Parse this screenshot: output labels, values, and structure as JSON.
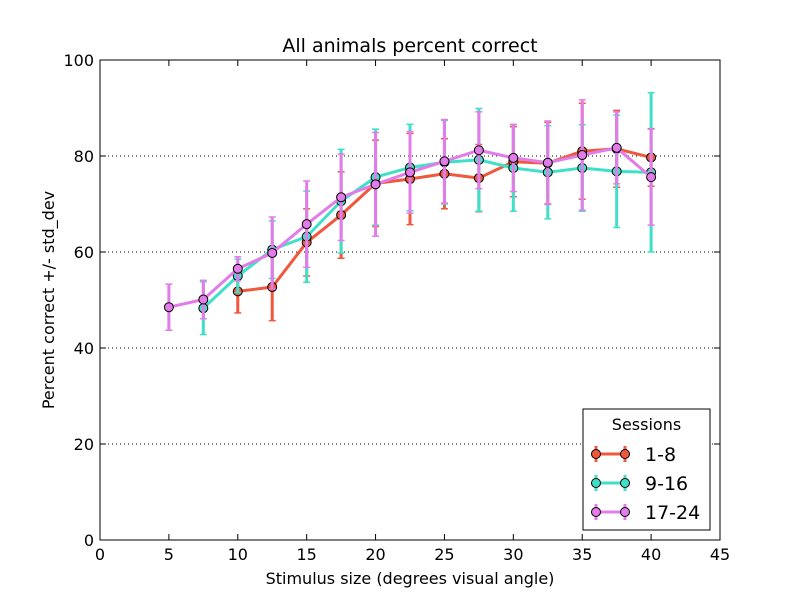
{
  "chart_data": {
    "type": "line",
    "title": "All animals percent correct",
    "xlabel": "Stimulus size (degrees visual angle)",
    "ylabel": "Percent correct +/- std_dev",
    "xlim": [
      0,
      45
    ],
    "ylim": [
      0,
      100
    ],
    "xticks": [
      0,
      5,
      10,
      15,
      20,
      25,
      30,
      35,
      40,
      45
    ],
    "yticks": [
      0,
      20,
      40,
      60,
      80,
      100
    ],
    "grid": "horizontal dotted at y ticks",
    "legend": {
      "title": "Sessions",
      "placement": "lower-right"
    },
    "series": [
      {
        "name": "1-8",
        "color": "#f0583d",
        "points": [
          {
            "x": 10,
            "y": 51.8,
            "err": 4.5
          },
          {
            "x": 12.5,
            "y": 52.7,
            "err": 7.0
          },
          {
            "x": 15,
            "y": 62.0,
            "err": 7.0
          },
          {
            "x": 17.5,
            "y": 67.7,
            "err": 9.0
          },
          {
            "x": 20,
            "y": 74.3,
            "err": 9.0
          },
          {
            "x": 22.5,
            "y": 75.2,
            "err": 9.5
          },
          {
            "x": 25,
            "y": 76.3,
            "err": 7.3
          },
          {
            "x": 27.5,
            "y": 75.4,
            "err": 7.0
          },
          {
            "x": 30,
            "y": 78.8,
            "err": 7.3
          },
          {
            "x": 32.5,
            "y": 78.5,
            "err": 8.5
          },
          {
            "x": 35,
            "y": 81.0,
            "err": 10.0
          },
          {
            "x": 37.5,
            "y": 81.5,
            "err": 8.0
          },
          {
            "x": 40,
            "y": 79.7,
            "err": 6.0
          }
        ]
      },
      {
        "name": "9-16",
        "color": "#40e0c8",
        "points": [
          {
            "x": 7.5,
            "y": 48.3,
            "err": 5.5
          },
          {
            "x": 10,
            "y": 55.0,
            "err": 3.5
          },
          {
            "x": 12.5,
            "y": 60.5,
            "err": 6.0
          },
          {
            "x": 15,
            "y": 63.2,
            "err": 9.5
          },
          {
            "x": 17.5,
            "y": 70.6,
            "err": 10.8
          },
          {
            "x": 20,
            "y": 75.6,
            "err": 10.0
          },
          {
            "x": 22.5,
            "y": 77.6,
            "err": 9.0
          },
          {
            "x": 25,
            "y": 78.7,
            "err": 8.7
          },
          {
            "x": 27.5,
            "y": 79.2,
            "err": 10.7
          },
          {
            "x": 30,
            "y": 77.5,
            "err": 9.0
          },
          {
            "x": 32.5,
            "y": 76.6,
            "err": 9.7
          },
          {
            "x": 35,
            "y": 77.5,
            "err": 9.0
          },
          {
            "x": 37.5,
            "y": 76.8,
            "err": 11.7
          },
          {
            "x": 40,
            "y": 76.6,
            "err": 16.6
          }
        ]
      },
      {
        "name": "17-24",
        "color": "#e27ce8",
        "points": [
          {
            "x": 5,
            "y": 48.5,
            "err": 4.8
          },
          {
            "x": 7.5,
            "y": 50.1,
            "err": 4.0
          },
          {
            "x": 10,
            "y": 56.5,
            "err": 2.5
          },
          {
            "x": 12.5,
            "y": 59.8,
            "err": 7.5
          },
          {
            "x": 15,
            "y": 65.8,
            "err": 9.0
          },
          {
            "x": 17.5,
            "y": 71.4,
            "err": 9.0
          },
          {
            "x": 20,
            "y": 74.1,
            "err": 10.8
          },
          {
            "x": 22.5,
            "y": 76.6,
            "err": 8.5
          },
          {
            "x": 25,
            "y": 78.9,
            "err": 8.7
          },
          {
            "x": 27.5,
            "y": 81.2,
            "err": 8.0
          },
          {
            "x": 30,
            "y": 79.6,
            "err": 7.0
          },
          {
            "x": 32.5,
            "y": 78.6,
            "err": 8.7
          },
          {
            "x": 35,
            "y": 80.2,
            "err": 11.5
          },
          {
            "x": 37.5,
            "y": 81.7,
            "err": 7.5
          },
          {
            "x": 40,
            "y": 75.6,
            "err": 10.0
          }
        ]
      }
    ]
  }
}
